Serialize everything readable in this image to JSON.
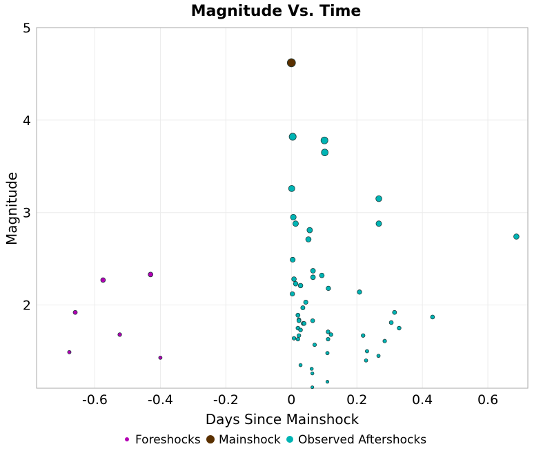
{
  "chart_data": {
    "type": "scatter",
    "title": "Magnitude Vs. Time",
    "xlabel": "Days Since Mainshock",
    "ylabel": "Magnitude",
    "xlim": [
      -0.778,
      0.722
    ],
    "ylim": [
      1.1,
      5
    ],
    "x_ticks": [
      -0.6,
      -0.4,
      -0.2,
      0,
      0.2,
      0.4,
      0.6
    ],
    "x_tick_labels": [
      "-0.6",
      "-0.4",
      "-0.2",
      "0",
      "0.2",
      "0.4",
      "0.6"
    ],
    "y_ticks": [
      2,
      3,
      4,
      5
    ],
    "y_tick_labels": [
      "2",
      "3",
      "4",
      "5"
    ],
    "grid": true,
    "legend_position": "bottom",
    "marker_size_encodes": "magnitude",
    "series": [
      {
        "name": "Foreshocks",
        "color": "#b400b4",
        "points": [
          [
            -0.678,
            1.49
          ],
          [
            -0.66,
            1.92
          ],
          [
            -0.575,
            2.27
          ],
          [
            -0.524,
            1.68
          ],
          [
            -0.43,
            2.33
          ],
          [
            -0.4,
            1.43
          ]
        ]
      },
      {
        "name": "Mainshock",
        "color": "#5a3000",
        "points": [
          [
            0.0,
            4.62
          ]
        ]
      },
      {
        "name": "Observed Aftershocks",
        "color": "#00b4b4",
        "points": [
          [
            0.004,
            3.82
          ],
          [
            0.101,
            3.78
          ],
          [
            0.102,
            3.65
          ],
          [
            0.001,
            3.26
          ],
          [
            0.267,
            3.15
          ],
          [
            0.006,
            2.95
          ],
          [
            0.013,
            2.88
          ],
          [
            0.267,
            2.88
          ],
          [
            0.056,
            2.81
          ],
          [
            0.052,
            2.71
          ],
          [
            0.687,
            2.74
          ],
          [
            0.004,
            2.49
          ],
          [
            0.066,
            2.37
          ],
          [
            0.093,
            2.32
          ],
          [
            0.066,
            2.3
          ],
          [
            0.008,
            2.28
          ],
          [
            0.013,
            2.23
          ],
          [
            0.028,
            2.21
          ],
          [
            0.113,
            2.18
          ],
          [
            0.208,
            2.14
          ],
          [
            0.003,
            2.12
          ],
          [
            0.044,
            2.03
          ],
          [
            0.035,
            1.97
          ],
          [
            0.315,
            1.92
          ],
          [
            0.02,
            1.89
          ],
          [
            0.431,
            1.87
          ],
          [
            0.023,
            1.84
          ],
          [
            0.023,
            1.83
          ],
          [
            0.065,
            1.83
          ],
          [
            0.305,
            1.81
          ],
          [
            0.036,
            1.8
          ],
          [
            0.039,
            1.8
          ],
          [
            0.329,
            1.75
          ],
          [
            0.02,
            1.75
          ],
          [
            0.028,
            1.73
          ],
          [
            0.112,
            1.71
          ],
          [
            0.121,
            1.68
          ],
          [
            0.023,
            1.67
          ],
          [
            0.219,
            1.67
          ],
          [
            0.008,
            1.64
          ],
          [
            0.02,
            1.63
          ],
          [
            0.112,
            1.63
          ],
          [
            0.285,
            1.61
          ],
          [
            0.071,
            1.57
          ],
          [
            0.231,
            1.5
          ],
          [
            0.11,
            1.48
          ],
          [
            0.266,
            1.45
          ],
          [
            0.228,
            1.4
          ],
          [
            0.028,
            1.35
          ],
          [
            0.062,
            1.31
          ],
          [
            0.064,
            1.26
          ],
          [
            0.11,
            1.17
          ],
          [
            0.064,
            1.11
          ]
        ]
      }
    ]
  }
}
